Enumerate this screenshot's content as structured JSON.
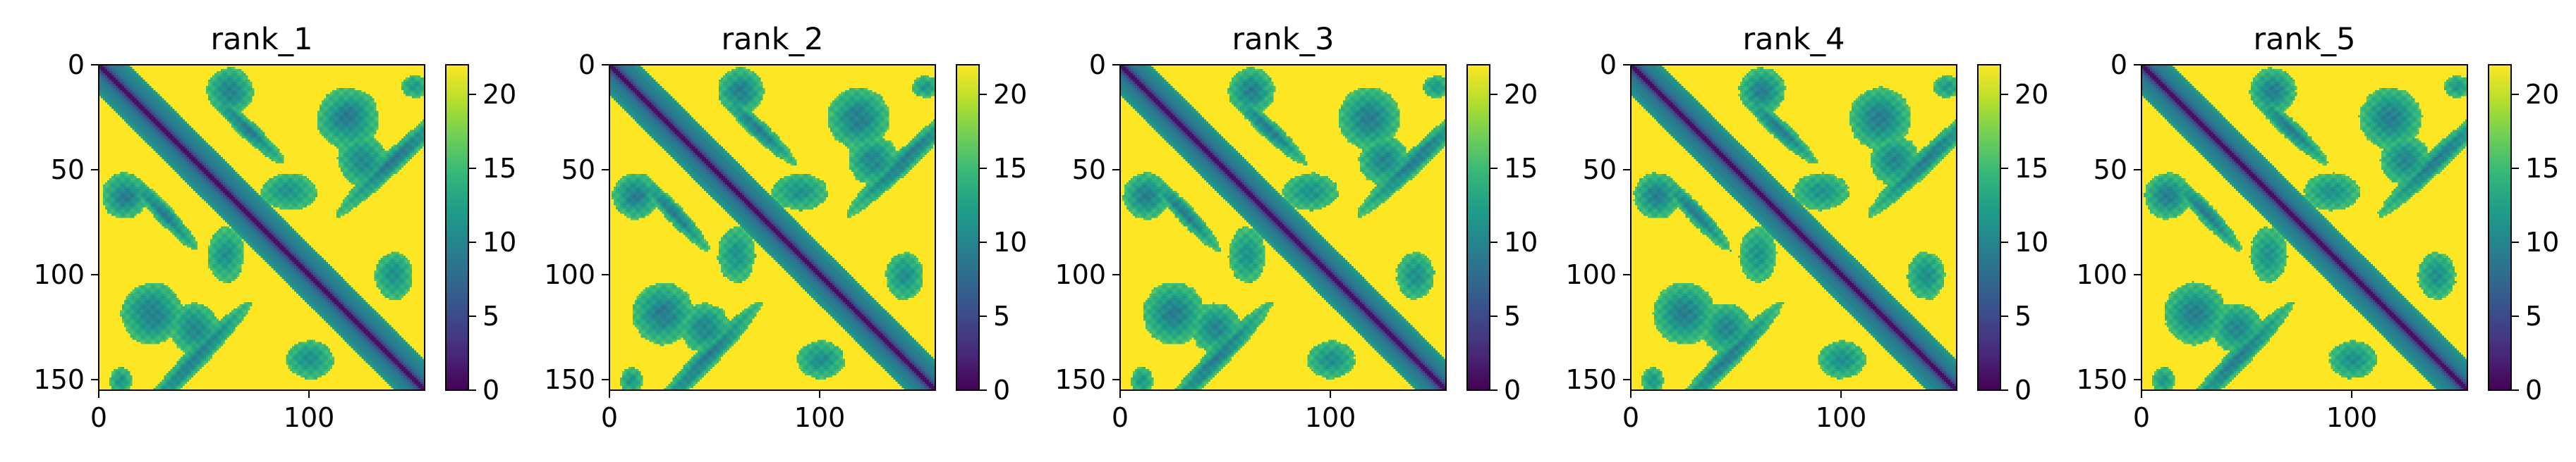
{
  "figure": {
    "description_colormap": "viridis"
  },
  "chart_data": [
    {
      "type": "heatmap",
      "title": "rank_1",
      "matrix_size": 155,
      "xticks": [
        0,
        100
      ],
      "yticks": [
        0,
        50,
        100,
        150
      ],
      "xlim": [
        0,
        155
      ],
      "ylim": [
        155,
        0
      ],
      "colorbar": {
        "min": 0,
        "max": 22,
        "ticks": [
          0,
          5,
          10,
          15,
          20
        ]
      },
      "variant": 1
    },
    {
      "type": "heatmap",
      "title": "rank_2",
      "matrix_size": 155,
      "xticks": [
        0,
        100
      ],
      "yticks": [
        0,
        50,
        100,
        150
      ],
      "xlim": [
        0,
        155
      ],
      "ylim": [
        155,
        0
      ],
      "colorbar": {
        "min": 0,
        "max": 22,
        "ticks": [
          0,
          5,
          10,
          15,
          20
        ]
      },
      "variant": 2
    },
    {
      "type": "heatmap",
      "title": "rank_3",
      "matrix_size": 155,
      "xticks": [
        0,
        100
      ],
      "yticks": [
        0,
        50,
        100,
        150
      ],
      "xlim": [
        0,
        155
      ],
      "ylim": [
        155,
        0
      ],
      "colorbar": {
        "min": 0,
        "max": 22,
        "ticks": [
          0,
          5,
          10,
          15,
          20
        ]
      },
      "variant": 3
    },
    {
      "type": "heatmap",
      "title": "rank_4",
      "matrix_size": 155,
      "xticks": [
        0,
        100
      ],
      "yticks": [
        0,
        50,
        100,
        150
      ],
      "xlim": [
        0,
        155
      ],
      "ylim": [
        155,
        0
      ],
      "colorbar": {
        "min": 0,
        "max": 22,
        "ticks": [
          0,
          5,
          10,
          15,
          20
        ]
      },
      "variant": 4
    },
    {
      "type": "heatmap",
      "title": "rank_5",
      "matrix_size": 155,
      "xticks": [
        0,
        100
      ],
      "yticks": [
        0,
        50,
        100,
        150
      ],
      "xlim": [
        0,
        155
      ],
      "ylim": [
        155,
        0
      ],
      "colorbar": {
        "min": 0,
        "max": 22,
        "ticks": [
          0,
          5,
          10,
          15,
          20
        ]
      },
      "variant": 5
    }
  ],
  "colors": {
    "viridis": [
      "#440154",
      "#482878",
      "#3e4989",
      "#31688e",
      "#26828e",
      "#1f9e89",
      "#35b779",
      "#6ece58",
      "#b5de2b",
      "#fde725"
    ]
  }
}
